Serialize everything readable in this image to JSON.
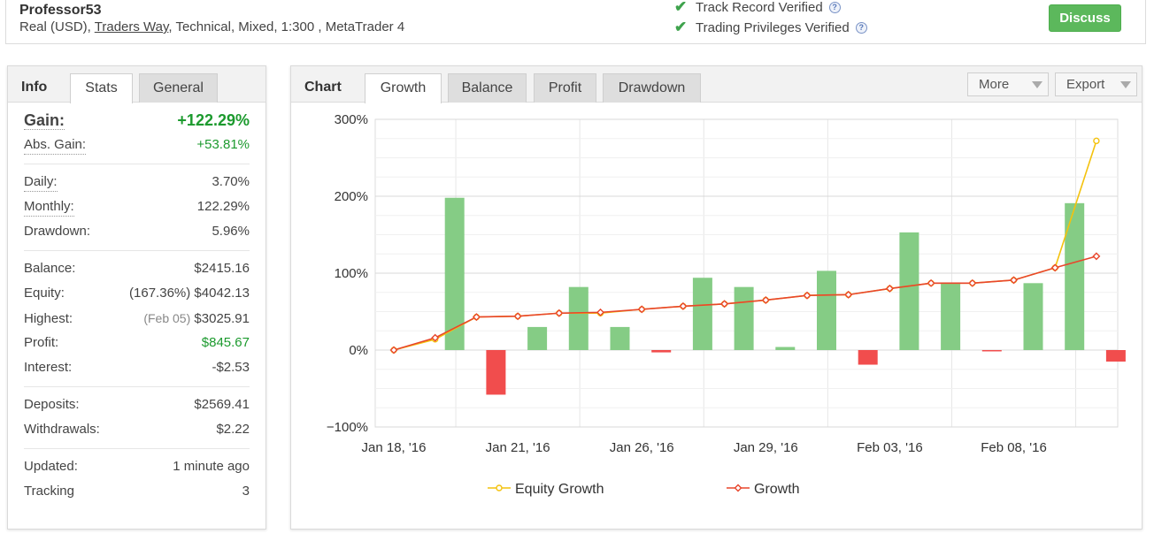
{
  "header": {
    "account_name": "Professor53",
    "meta_prefix": "Real (USD), ",
    "broker": "Traders Way",
    "meta_suffix": ", Technical, Mixed, 1:300 , MetaTrader 4",
    "verified": [
      "Track Record Verified",
      "Trading Privileges Verified"
    ],
    "discuss_label": "Discuss"
  },
  "left_tabs": {
    "title": "Info",
    "tabs": [
      "Stats",
      "General"
    ]
  },
  "stats": {
    "gain": {
      "label": "Gain:",
      "value": "+122.29%"
    },
    "abs_gain": {
      "label": "Abs. Gain:",
      "value": "+53.81%"
    },
    "daily": {
      "label": "Daily:",
      "value": "3.70%"
    },
    "monthly": {
      "label": "Monthly:",
      "value": "122.29%"
    },
    "drawdown": {
      "label": "Drawdown:",
      "value": "5.96%"
    },
    "balance": {
      "label": "Balance:",
      "value": "$2415.16"
    },
    "equity": {
      "label": "Equity:",
      "note": "(167.36%)",
      "value": "$4042.13"
    },
    "highest": {
      "label": "Highest:",
      "note": "(Feb 05)",
      "value": "$3025.91"
    },
    "profit": {
      "label": "Profit:",
      "value": "$845.67"
    },
    "interest": {
      "label": "Interest:",
      "value": "-$2.53"
    },
    "deposits": {
      "label": "Deposits:",
      "value": "$2569.41"
    },
    "withdrawals": {
      "label": "Withdrawals:",
      "value": "$2.22"
    },
    "updated": {
      "label": "Updated:",
      "value": "1 minute ago"
    },
    "tracking": {
      "label": "Tracking",
      "value": "3"
    }
  },
  "chart_panel": {
    "title": "Chart",
    "tabs": [
      "Growth",
      "Balance",
      "Profit",
      "Drawdown"
    ],
    "more_label": "More",
    "export_label": "Export"
  },
  "colors": {
    "bar_positive": "#85cc85",
    "bar_negative": "#f14d4d",
    "growth_line": "#e8462c",
    "equity_line": "#f4c20d",
    "accent_green": "#5cb85c"
  },
  "chart_data": {
    "type": "bar",
    "ylim": [
      -100,
      300
    ],
    "y_ticks": [
      "300%",
      "200%",
      "100%",
      "0%",
      "−100%"
    ],
    "y_tick_values": [
      300,
      200,
      100,
      0,
      -100
    ],
    "x_tick_labels": [
      "Jan 18, '16",
      "Jan 21, '16",
      "Jan 26, '16",
      "Jan 29, '16",
      "Feb 03, '16",
      "Feb 08, '16"
    ],
    "x_tick_index": [
      0,
      3,
      6,
      9,
      12,
      15
    ],
    "bars": [
      0,
      198,
      -58,
      30,
      82,
      30,
      -3,
      94,
      82,
      4,
      103,
      -19,
      153,
      88,
      -1,
      87,
      191,
      -15
    ],
    "series": [
      {
        "name": "Equity Growth",
        "values": [
          0,
          14,
          43,
          44,
          48,
          48,
          53,
          57,
          60,
          65,
          71,
          72,
          80,
          87,
          87,
          91,
          107,
          272
        ]
      },
      {
        "name": "Growth",
        "values": [
          0,
          16,
          43,
          44,
          48,
          49,
          53,
          57,
          60,
          65,
          71,
          72,
          80,
          87,
          87,
          91,
          107,
          122
        ]
      }
    ]
  }
}
